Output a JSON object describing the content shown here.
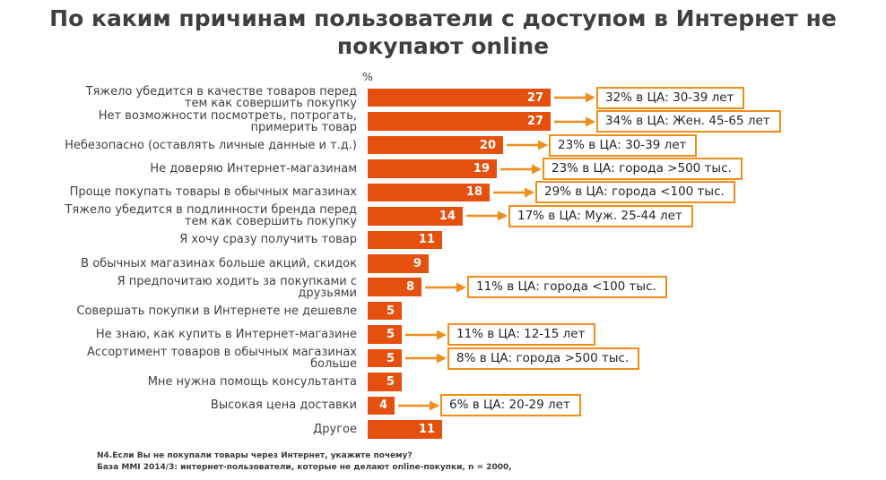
{
  "title": "По каким причинам пользователи с доступом в Интернет не покупают online",
  "title_lines": [
    "По каким причинам пользователи с доступом в Интернет не",
    "покупают online"
  ],
  "axis": {
    "unit_label": "%"
  },
  "chart_data": {
    "type": "bar",
    "orientation": "horizontal",
    "title": "По каким причинам пользователи с доступом в Интернет не покупают online",
    "value_unit": "%",
    "xlim": [
      0,
      30
    ],
    "grid": false,
    "legend": false,
    "categories": [
      "Тяжело убедится в качестве товаров перед тем как совершить покупку",
      "Нет возможности посмотреть, потрогать, примерить товар",
      "Небезопасно (оставлять личные данные и т.д.)",
      "Не доверяю Интернет-магазинам",
      "Проще покупать товары в обычных магазинах",
      "Тяжело убедится в подлинности бренда перед тем как совершить покупку",
      "Я хочу сразу получить товар",
      "В обычных магазинах больше акций, скидок",
      "Я предпочитаю ходить за покупками с друзьями",
      "Совершать покупки в Интернете не дешевле",
      "Не знаю, как купить в Интернет-магазине",
      "Ассортимент товаров в обычных магазинах больше",
      "Мне нужна помощь консультанта",
      "Высокая цена доставки",
      "Другое"
    ],
    "values": [
      27,
      27,
      20,
      19,
      18,
      14,
      11,
      9,
      8,
      5,
      5,
      5,
      5,
      4,
      11
    ],
    "annotations": [
      "32% в ЦА: 30-39 лет",
      "34% в ЦА: Жен. 45-65 лет",
      "23% в ЦА: 30-39 лет",
      "23% в ЦА: города >500 тыс.",
      "29% в ЦА: города <100 тыс.",
      "17% в ЦА: Муж. 25-44 лет",
      null,
      null,
      "11% в ЦА: города <100 тыс.",
      null,
      "11% в ЦА: 12-15 лет",
      "8% в ЦА: города >500 тыс.",
      null,
      "6% в ЦА: 20-29 лет",
      null
    ],
    "colors": {
      "bar": "#E6500E",
      "annotation": "#EF8E1A",
      "bar_value_text": "#FFFFFF",
      "label_text": "#3F3F3F"
    }
  },
  "footnotes": [
    "N4.Если Вы не покупали товары через Интернет, укажите почему?",
    "База MMI 2014/3: интернет-пользователи, которые не делают online-покупки, n = 2000,"
  ]
}
